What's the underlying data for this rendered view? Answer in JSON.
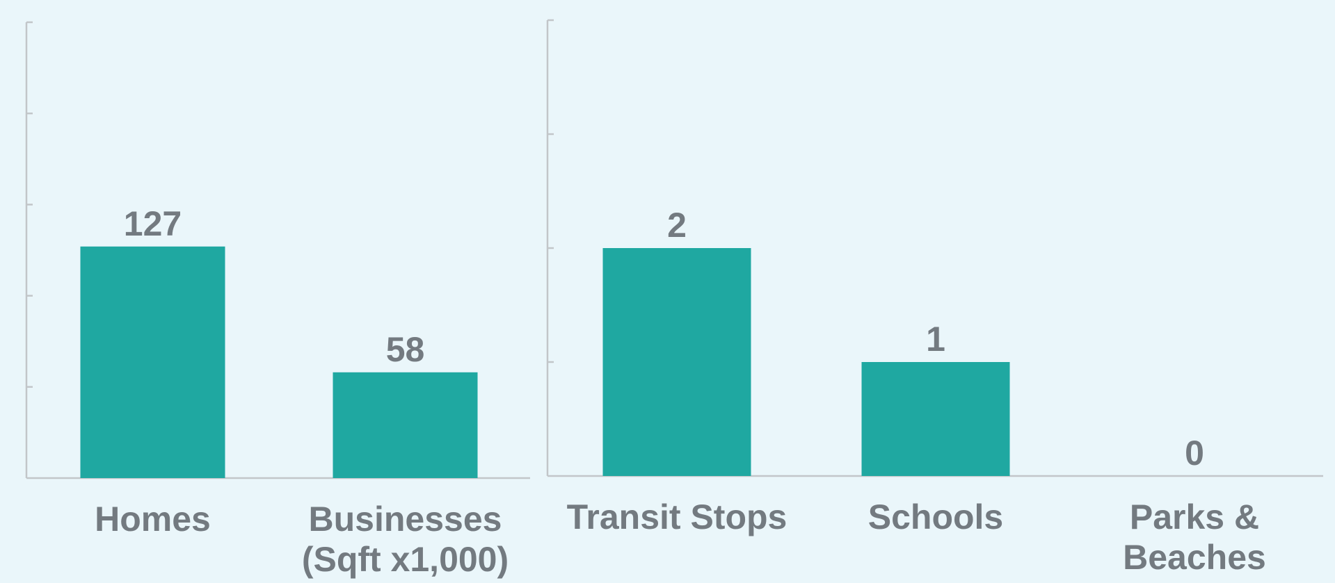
{
  "colors": {
    "bar": "#1fa8a1",
    "axis": "#c2c6c9",
    "text": "#737a80",
    "background": "#eaf6fa"
  },
  "chart_data": [
    {
      "type": "bar",
      "categories": [
        [
          "Homes"
        ],
        [
          "Businesses",
          "(Sqft x1,000)"
        ]
      ],
      "values": [
        127,
        58
      ],
      "data_labels": [
        "127",
        "58"
      ],
      "ylim": [
        0,
        250
      ],
      "ytick_count": 5,
      "grid": false,
      "title": "",
      "xlabel": "",
      "ylabel": ""
    },
    {
      "type": "bar",
      "categories": [
        [
          "Transit Stops"
        ],
        [
          "Schools"
        ],
        [
          "Parks &",
          "Beaches"
        ]
      ],
      "values": [
        2,
        1,
        0
      ],
      "data_labels": [
        "2",
        "1",
        "0"
      ],
      "ylim": [
        0,
        4
      ],
      "ytick_count": 4,
      "grid": false,
      "title": "",
      "xlabel": "",
      "ylabel": ""
    }
  ]
}
